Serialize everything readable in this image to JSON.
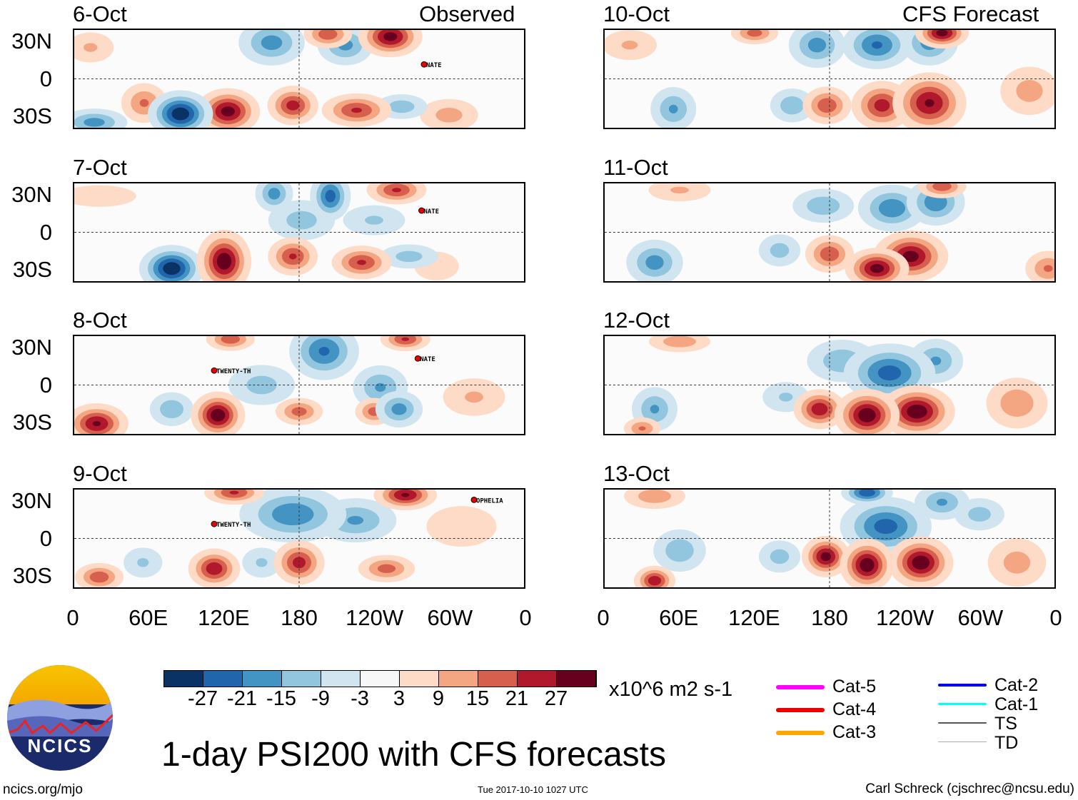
{
  "header": {
    "left": "Observed",
    "right": "CFS Forecast"
  },
  "title": "1-day PSI200 with CFS forecasts",
  "units": "x10^6 m2 s-1",
  "footer": {
    "site": "ncics.org/mjo",
    "timestamp": "Tue 2017-10-10 1027 UTC",
    "author": "Carl Schreck (cjschrec@ncsu.edu)",
    "logo": "NCICS"
  },
  "chart_data": {
    "type": "heatmap",
    "lat_labels": [
      "30N",
      "0",
      "30S"
    ],
    "lon_labels": [
      "0",
      "60E",
      "120E",
      "180",
      "120W",
      "60W",
      "0"
    ],
    "levels": [
      -27,
      -21,
      -15,
      -9,
      -3,
      3,
      9,
      15,
      21,
      27
    ],
    "level_labels": [
      "-27",
      "-21",
      "-15",
      "-9",
      "-3",
      "3",
      "9",
      "15",
      "21",
      "27"
    ],
    "colors": [
      "#0a3264",
      "#2166ac",
      "#4393c3",
      "#92c5de",
      "#d1e5f0",
      "#f7f7f7",
      "#fddbc7",
      "#f4a582",
      "#d6604d",
      "#b2182b",
      "#67001f"
    ],
    "panels": [
      {
        "date": "6-Oct",
        "col": 0,
        "row": 0,
        "blobs": [
          [
            85,
            -29,
            -32,
            12,
            9
          ],
          [
            123,
            -27,
            30,
            12,
            9
          ],
          [
            175,
            -22,
            24,
            10,
            8
          ],
          [
            226,
            -26,
            22,
            14,
            7
          ],
          [
            253,
            35,
            30,
            12,
            8
          ],
          [
            203,
            37,
            20,
            10,
            6
          ],
          [
            158,
            30,
            -18,
            14,
            10
          ],
          [
            217,
            28,
            -17,
            12,
            9
          ],
          [
            56,
            -20,
            16,
            10,
            9
          ],
          [
            16,
            -36,
            -18,
            14,
            6
          ],
          [
            262,
            -23,
            -13,
            12,
            6
          ],
          [
            13,
            26,
            10,
            12,
            8
          ],
          [
            300,
            -30,
            12,
            14,
            8
          ]
        ],
        "storms": [
          {
            "name": "NATE",
            "lon": 280,
            "lat": 12
          }
        ]
      },
      {
        "date": "7-Oct",
        "col": 0,
        "row": 1,
        "blobs": [
          [
            78,
            -30,
            -32,
            12,
            9
          ],
          [
            120,
            -24,
            32,
            10,
            12
          ],
          [
            175,
            -20,
            22,
            10,
            8
          ],
          [
            230,
            -25,
            22,
            12,
            7
          ],
          [
            258,
            35,
            22,
            12,
            6
          ],
          [
            160,
            32,
            -18,
            8,
            8
          ],
          [
            205,
            30,
            -24,
            8,
            10
          ],
          [
            182,
            10,
            -12,
            16,
            10
          ],
          [
            268,
            -20,
            -12,
            14,
            6
          ],
          [
            240,
            10,
            -10,
            16,
            8
          ],
          [
            20,
            30,
            9,
            20,
            6
          ],
          [
            290,
            -28,
            9,
            12,
            8
          ]
        ],
        "storms": [
          {
            "name": "NATE",
            "lon": 278,
            "lat": 18
          }
        ]
      },
      {
        "date": "8-Oct",
        "col": 0,
        "row": 2,
        "blobs": [
          [
            18,
            -32,
            28,
            12,
            8
          ],
          [
            115,
            -25,
            32,
            10,
            9
          ],
          [
            180,
            -22,
            18,
            10,
            6
          ],
          [
            240,
            -22,
            18,
            8,
            6
          ],
          [
            260,
            -20,
            -18,
            10,
            8
          ],
          [
            200,
            28,
            -22,
            14,
            12
          ],
          [
            245,
            -2,
            -16,
            12,
            10
          ],
          [
            265,
            38,
            22,
            10,
            5
          ],
          [
            125,
            38,
            20,
            10,
            5
          ],
          [
            78,
            -20,
            -14,
            10,
            8
          ],
          [
            150,
            0,
            -12,
            16,
            10
          ],
          [
            320,
            -10,
            10,
            16,
            10
          ]
        ],
        "storms": [
          {
            "name": "TWENTY-TH",
            "lon": 112,
            "lat": 12
          },
          {
            "name": "NATE",
            "lon": 275,
            "lat": 22
          }
        ]
      },
      {
        "date": "9-Oct",
        "col": 0,
        "row": 3,
        "blobs": [
          [
            20,
            -32,
            20,
            10,
            6
          ],
          [
            112,
            -25,
            26,
            10,
            8
          ],
          [
            180,
            -20,
            24,
            10,
            9
          ],
          [
            250,
            -25,
            18,
            12,
            6
          ],
          [
            265,
            36,
            28,
            12,
            6
          ],
          [
            128,
            38,
            22,
            12,
            5
          ],
          [
            175,
            20,
            -20,
            22,
            12
          ],
          [
            225,
            15,
            -16,
            18,
            10
          ],
          [
            150,
            -20,
            -10,
            10,
            8
          ],
          [
            55,
            -20,
            -10,
            10,
            8
          ],
          [
            310,
            10,
            8,
            20,
            12
          ]
        ],
        "storms": [
          {
            "name": "TWENTY-TH",
            "lon": 112,
            "lat": 12
          },
          {
            "name": "OPHELIA",
            "lon": 320,
            "lat": 32
          }
        ]
      },
      {
        "date": "10-Oct",
        "col": 1,
        "row": 0,
        "blobs": [
          [
            260,
            -20,
            28,
            14,
            12
          ],
          [
            222,
            -22,
            24,
            12,
            10
          ],
          [
            178,
            -22,
            20,
            10,
            8
          ],
          [
            218,
            28,
            -22,
            14,
            10
          ],
          [
            260,
            30,
            -18,
            12,
            10
          ],
          [
            170,
            28,
            -18,
            12,
            10
          ],
          [
            270,
            38,
            30,
            10,
            6
          ],
          [
            120,
            38,
            18,
            10,
            5
          ],
          [
            55,
            -25,
            -16,
            10,
            10
          ],
          [
            150,
            -22,
            -14,
            10,
            8
          ],
          [
            340,
            -10,
            12,
            14,
            12
          ],
          [
            20,
            28,
            10,
            14,
            8
          ]
        ],
        "storms": []
      },
      {
        "date": "11-Oct",
        "col": 1,
        "row": 1,
        "blobs": [
          [
            245,
            -20,
            30,
            14,
            10
          ],
          [
            218,
            -30,
            30,
            12,
            8
          ],
          [
            180,
            -18,
            20,
            10,
            8
          ],
          [
            230,
            20,
            -20,
            14,
            10
          ],
          [
            265,
            25,
            -20,
            12,
            10
          ],
          [
            175,
            22,
            -14,
            14,
            8
          ],
          [
            40,
            -25,
            -18,
            12,
            10
          ],
          [
            270,
            38,
            20,
            10,
            5
          ],
          [
            140,
            -15,
            -12,
            10,
            8
          ],
          [
            355,
            -30,
            16,
            10,
            8
          ],
          [
            60,
            35,
            10,
            16,
            6
          ]
        ],
        "storms": []
      },
      {
        "date": "12-Oct",
        "col": 1,
        "row": 2,
        "blobs": [
          [
            250,
            -22,
            32,
            14,
            10
          ],
          [
            210,
            -25,
            32,
            12,
            10
          ],
          [
            172,
            -20,
            26,
            10,
            8
          ],
          [
            228,
            10,
            -24,
            18,
            12
          ],
          [
            265,
            20,
            -16,
            12,
            10
          ],
          [
            190,
            20,
            -14,
            16,
            10
          ],
          [
            40,
            -20,
            -16,
            10,
            10
          ],
          [
            330,
            -15,
            14,
            14,
            12
          ],
          [
            60,
            36,
            14,
            14,
            5
          ],
          [
            145,
            -10,
            -10,
            12,
            8
          ],
          [
            30,
            -36,
            16,
            8,
            5
          ]
        ],
        "storms": []
      },
      {
        "date": "13-Oct",
        "col": 1,
        "row": 3,
        "blobs": [
          [
            253,
            -20,
            32,
            12,
            10
          ],
          [
            210,
            -22,
            32,
            10,
            10
          ],
          [
            177,
            -15,
            30,
            9,
            8
          ],
          [
            225,
            10,
            -24,
            18,
            12
          ],
          [
            210,
            38,
            -26,
            10,
            5
          ],
          [
            270,
            30,
            -16,
            12,
            8
          ],
          [
            40,
            -35,
            26,
            8,
            6
          ],
          [
            60,
            -10,
            -14,
            12,
            10
          ],
          [
            140,
            -15,
            -12,
            10,
            8
          ],
          [
            330,
            -20,
            12,
            14,
            12
          ],
          [
            40,
            35,
            14,
            14,
            6
          ],
          [
            300,
            20,
            -12,
            12,
            8
          ]
        ],
        "storms": []
      }
    ]
  },
  "legend": {
    "tracks": [
      {
        "label": "Cat-5",
        "color": "#ff00ff"
      },
      {
        "label": "Cat-4",
        "color": "#ee0000"
      },
      {
        "label": "Cat-3",
        "color": "#ffa500"
      },
      {
        "label": "Cat-2",
        "color": "#0000ee"
      },
      {
        "label": "Cat-1",
        "color": "#00ffff"
      },
      {
        "label": "TS",
        "color": "#555555"
      },
      {
        "label": "TD",
        "color": "#aaaaaa"
      }
    ]
  }
}
